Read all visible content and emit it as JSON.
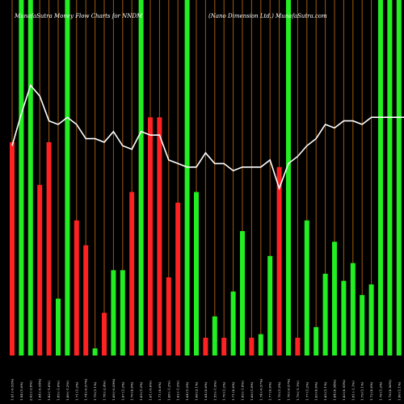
{
  "header": {
    "left_title": "MunafaSutra  Money Flow  Charts for NNDM",
    "right_title": "(Nano  Dimension  Ltd.) MunafaSutra.com"
  },
  "chart_data": {
    "type": "bar",
    "title": "MunafaSutra  Money Flow  Charts for NNDM",
    "subtitle": "(Nano  Dimension  Ltd.) MunafaSutra.com",
    "xlabel": "",
    "ylabel": "",
    "grid": true,
    "colors": {
      "up": "#22ee22",
      "down": "#ff2222",
      "line": "#ffffff",
      "grid": "#a05a10",
      "background": "#000000"
    },
    "categories": [
      "1.91 (-0.52%)",
      "1.94 (1.6%)",
      "2.02 (-2.8%)",
      "1.84 (-0.54%)",
      "1.82 (-1.6%)",
      "1.85 (-1.6%)",
      "1.89 (-1.2%)",
      "1.71 (1.2%)",
      "1.74 (-0.57%)",
      "1.79 (1.1%)",
      "1.78 (-2.4%)",
      "1.69 (-0.59%)",
      "1.67 (1.2%)",
      "1.70 (0.6%)",
      "1.65 (1.2%)",
      "1.61 (-0.6%)",
      "1.71 (0.6%)",
      "1.68 (-1.2%)",
      "1.62 (-1.2%)",
      "1.64 (1.2%)",
      "1.68 (3.1%)",
      "1.64 (0.6%)",
      "1.55 (-1.9%)",
      "1.70 (1.2%)",
      "1.71 (0.6%)",
      "1.65 (-1.8%)",
      "1.68 (1.8%)",
      "1.74 (-0.57%)",
      "1.77 (0.6%)",
      "1.70 (1.2%)",
      "1.76 (-0.57%)",
      "1.79 (-1.1%)",
      "1.77 (1.2%)",
      "1.63 (0.6%)",
      "1.85 (1.1%)",
      "1.84 (0.54%)",
      "1.83 (0.55%)",
      "1.81 (-1.1%)",
      "1.79 (1.1%)",
      "1.72 (0.6%)",
      "1.76 (1.2%)",
      "1.78 (0.56%)",
      "1.80 (1.1%)",
      "1.79 (-0.56%)",
      "1.81 (1.1%)"
    ],
    "series": [
      {
        "kind": "bar",
        "values": [
          60,
          100,
          100,
          48,
          60,
          16,
          100,
          38,
          31,
          2,
          12,
          24,
          24,
          46,
          100,
          67,
          67,
          22,
          43,
          100,
          46,
          5,
          11,
          5,
          18,
          35,
          5,
          6,
          28,
          53,
          100,
          5,
          38,
          8,
          23,
          32,
          21,
          26,
          17,
          20,
          100,
          100,
          100,
          100,
          100
        ],
        "up": [
          false,
          true,
          true,
          false,
          false,
          true,
          true,
          false,
          false,
          true,
          false,
          true,
          true,
          false,
          true,
          false,
          false,
          false,
          false,
          true,
          true,
          false,
          true,
          false,
          true,
          true,
          false,
          true,
          true,
          false,
          true,
          false,
          true,
          true,
          true,
          true,
          true,
          true,
          true,
          true,
          true,
          true,
          true,
          true,
          true
        ]
      },
      {
        "kind": "line",
        "values": [
          59,
          68,
          76,
          73,
          66,
          65,
          67,
          65,
          61,
          61,
          60,
          63,
          59,
          58,
          63,
          62,
          62,
          55,
          54,
          53,
          53,
          57,
          54,
          54,
          52,
          53,
          53,
          53,
          55,
          47,
          54,
          56,
          59,
          61,
          65,
          64,
          66,
          66,
          65,
          67,
          67,
          67,
          67,
          67,
          67
        ]
      }
    ],
    "ylim": [
      0,
      100
    ]
  }
}
